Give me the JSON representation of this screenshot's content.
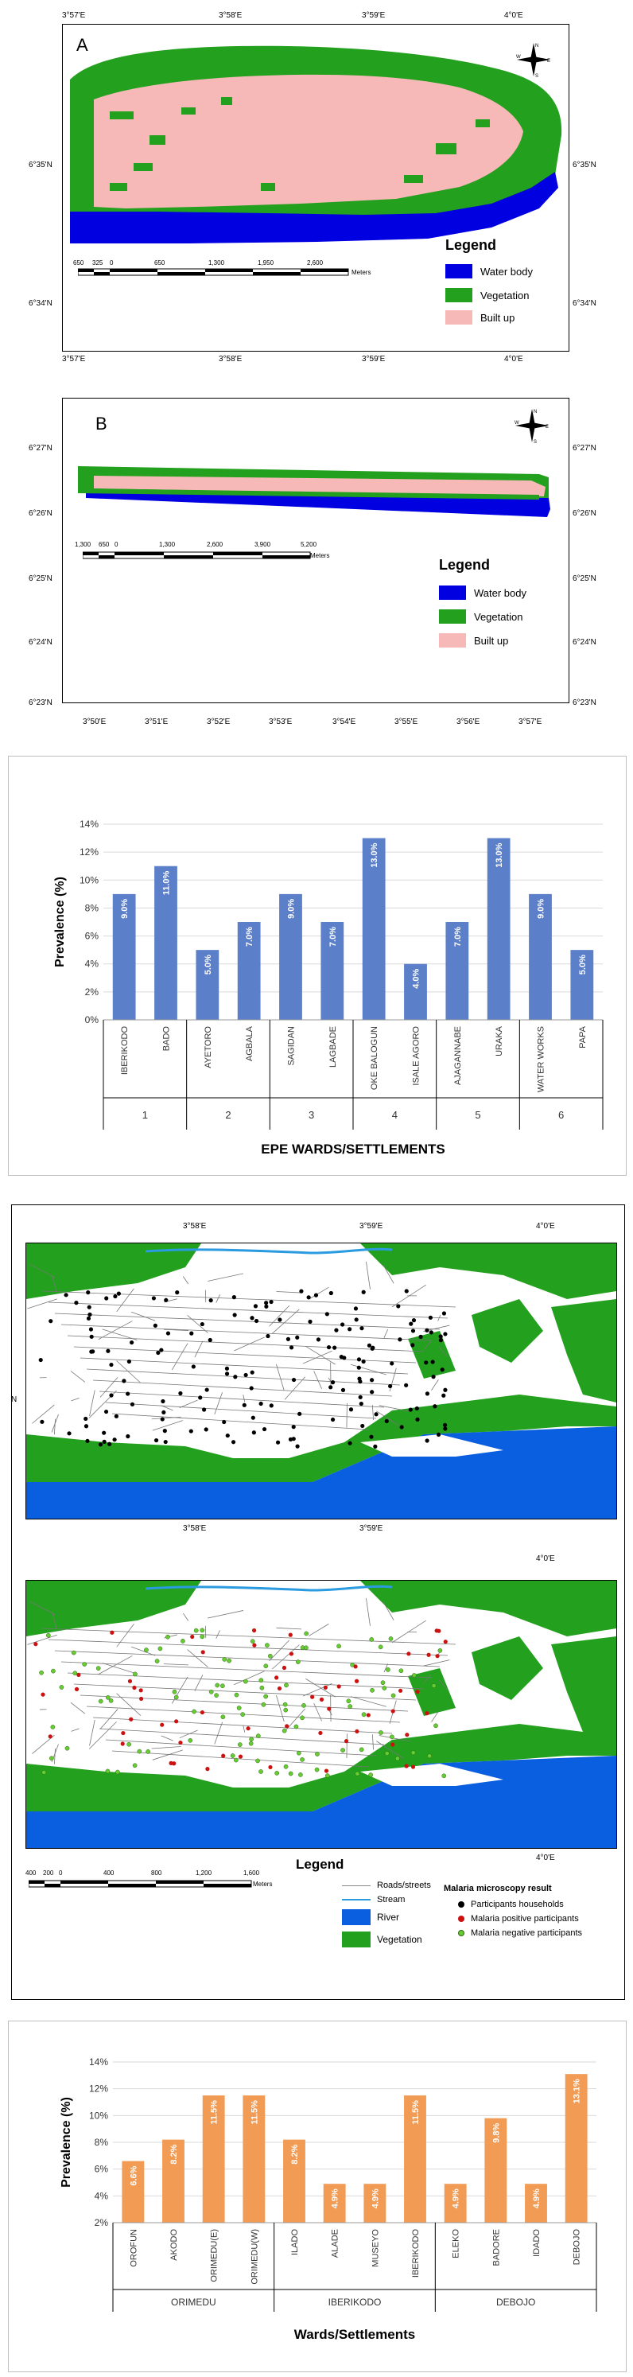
{
  "map_a": {
    "letter": "A",
    "top_ticks": [
      "3°57'E",
      "3°58'E",
      "3°59'E",
      "4°0'E"
    ],
    "bottom_ticks": [
      "3°57'E",
      "3°58'E",
      "3°59'E",
      "4°0'E"
    ],
    "left_ticks": [
      "6°35'N",
      "6°34'N"
    ],
    "right_ticks": [
      "6°35'N",
      "6°34'N"
    ],
    "scale_labels": [
      "650",
      "325",
      "0",
      "650",
      "1,300",
      "1,950",
      "2,600"
    ],
    "scale_unit": "Meters",
    "legend_title": "Legend",
    "legend": [
      {
        "label": "Water body",
        "color": "#0000e0"
      },
      {
        "label": "Vegetation",
        "color": "#22a01e"
      },
      {
        "label": "Built up",
        "color": "#f7b8b8"
      }
    ]
  },
  "map_b": {
    "letter": "B",
    "bottom_ticks": [
      "3°50'E",
      "3°51'E",
      "3°52'E",
      "3°53'E",
      "3°54'E",
      "3°55'E",
      "3°56'E",
      "3°57'E"
    ],
    "left_ticks": [
      "6°27'N",
      "6°26'N",
      "6°25'N",
      "6°24'N",
      "6°23'N"
    ],
    "right_ticks": [
      "6°27'N",
      "6°26'N",
      "6°25'N",
      "6°24'N",
      "6°23'N"
    ],
    "scale_labels": [
      "1,300",
      "650",
      "0",
      "1,300",
      "2,600",
      "3,900",
      "5,200"
    ],
    "scale_unit": "Meters",
    "legend_title": "Legend",
    "legend": [
      {
        "label": "Water body",
        "color": "#0000e0"
      },
      {
        "label": "Vegetation",
        "color": "#22a01e"
      },
      {
        "label": "Built up",
        "color": "#f7b8b8"
      }
    ]
  },
  "chart1": {
    "type": "bar",
    "color": "#5b7fc8",
    "ylabel": "Prevalence (%)",
    "xlabel": "EPE WARDS/SETTLEMENTS",
    "yticks": [
      "0%",
      "2%",
      "4%",
      "6%",
      "8%",
      "10%",
      "12%",
      "14%"
    ],
    "ylim": [
      0,
      14
    ],
    "categories": [
      "IBERIKODO",
      "BADO",
      "AYETORO",
      "AGBALA",
      "SAGIDAN",
      "LAGBADE",
      "OKE BALOGUN",
      "ISALE AGORO",
      "AJAGANNABE",
      "URAKA",
      "WATER WORKS",
      "PAPA"
    ],
    "values": [
      9.0,
      11.0,
      5.0,
      7.0,
      9.0,
      7.0,
      13.0,
      4.0,
      7.0,
      13.0,
      9.0,
      5.0
    ],
    "value_labels": [
      "9.0%",
      "11.0%",
      "5.0%",
      "7.0%",
      "9.0%",
      "7.0%",
      "13.0%",
      "4.0%",
      "7.0%",
      "13.0%",
      "9.0%",
      "5.0%"
    ],
    "groups": [
      "1",
      "2",
      "3",
      "4",
      "5",
      "6"
    ]
  },
  "map_c": {
    "top_ticks": [
      "3°58'E",
      "3°59'E",
      "4°0'E"
    ],
    "mid_ticks": [
      "3°58'E",
      "3°59'E",
      "4°0'E"
    ],
    "bottom_ticks": [
      "4°0'E"
    ],
    "left_mark": "N",
    "scale_labels": [
      "400",
      "200",
      "0",
      "400",
      "800",
      "1,200",
      "1,600"
    ],
    "scale_unit": "Meters",
    "legend_title": "Legend",
    "legend_left": [
      {
        "label": "Roads/streets",
        "kind": "line",
        "color": "#888888"
      },
      {
        "label": "Stream",
        "kind": "line",
        "color": "#2a9be0"
      },
      {
        "label": "River",
        "kind": "box",
        "color": "#0a5ee0"
      },
      {
        "label": "Vegetation",
        "kind": "box",
        "color": "#22a01e"
      }
    ],
    "legend_right_title": "Malaria microscopy result",
    "legend_right": [
      {
        "label": "Participants households",
        "color": "#000000"
      },
      {
        "label": "Malaria positive participants",
        "color": "#cc1111"
      },
      {
        "label": "Malaria negative participants",
        "color": "#66cc33"
      }
    ]
  },
  "chart2": {
    "type": "bar",
    "color": "#f19b55",
    "ylabel": "Prevalence (%)",
    "xlabel": "Wards/Settlements",
    "yticks": [
      "2%",
      "4%",
      "6%",
      "8%",
      "10%",
      "12%",
      "14%"
    ],
    "ylim": [
      2,
      14
    ],
    "categories": [
      "OROFUN",
      "AKODO",
      "ORIMEDU(E)",
      "ORIMEDU(W)",
      "ILADO",
      "ALADE",
      "MUSEYO",
      "IBERIKODO",
      "ELEKO",
      "BADORE",
      "IDADO",
      "DEBOJO"
    ],
    "values": [
      6.6,
      8.2,
      11.5,
      11.5,
      8.2,
      4.9,
      4.9,
      11.5,
      4.9,
      9.8,
      4.9,
      13.1
    ],
    "value_labels": [
      "6.6%",
      "8.2%",
      "11.5%",
      "11.5%",
      "8.2%",
      "4.9%",
      "4.9%",
      "11.5%",
      "4.9%",
      "9.8%",
      "4.9%",
      "13.1%"
    ],
    "groups": [
      "ORIMEDU",
      "IBERIKODO",
      "DEBOJO"
    ]
  }
}
